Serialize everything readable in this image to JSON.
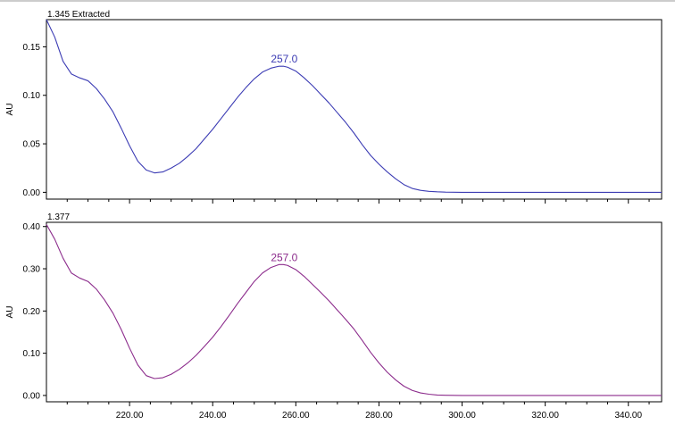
{
  "chart_data": [
    {
      "type": "line",
      "title": "1.345 Extracted",
      "xlabel": "",
      "ylabel": "AU",
      "xlim": [
        200,
        348
      ],
      "ylim": [
        -0.007,
        0.178
      ],
      "yticks": [
        "0.00",
        "0.05",
        "0.10",
        "0.15"
      ],
      "xticks": [],
      "line_color": "#3c3cb4",
      "grid": false,
      "peak_annotation": {
        "text": "257.0",
        "x": 257.0,
        "y": 0.13
      },
      "series": [
        {
          "x": [
            200,
            202,
            204,
            206,
            208,
            210,
            212,
            214,
            216,
            218,
            220,
            222,
            224,
            226,
            228,
            230,
            232,
            234,
            236,
            238,
            240,
            242,
            244,
            246,
            248,
            250,
            252,
            254,
            256,
            257,
            258,
            260,
            262,
            264,
            266,
            268,
            270,
            272,
            274,
            276,
            278,
            280,
            282,
            284,
            286,
            288,
            290,
            292,
            294,
            296,
            300,
            310,
            320,
            330,
            340,
            348
          ],
          "values": [
            0.178,
            0.16,
            0.135,
            0.122,
            0.118,
            0.115,
            0.107,
            0.096,
            0.083,
            0.066,
            0.048,
            0.032,
            0.023,
            0.02,
            0.021,
            0.025,
            0.03,
            0.037,
            0.045,
            0.055,
            0.065,
            0.076,
            0.087,
            0.098,
            0.108,
            0.117,
            0.124,
            0.128,
            0.13,
            0.13,
            0.129,
            0.125,
            0.118,
            0.11,
            0.101,
            0.092,
            0.082,
            0.072,
            0.061,
            0.049,
            0.038,
            0.029,
            0.021,
            0.014,
            0.008,
            0.004,
            0.002,
            0.001,
            0.0005,
            0.0002,
            0,
            0,
            0,
            0,
            0,
            0
          ]
        }
      ]
    },
    {
      "type": "line",
      "title": "1.377",
      "xlabel": "",
      "ylabel": "AU",
      "xlim": [
        200,
        348
      ],
      "ylim": [
        -0.015,
        0.41
      ],
      "yticks": [
        "0.00",
        "0.10",
        "0.20",
        "0.30",
        "0.40"
      ],
      "xticks": [
        "220.00",
        "240.00",
        "260.00",
        "280.00",
        "300.00",
        "320.00",
        "340.00"
      ],
      "line_color": "#8c2c8c",
      "grid": false,
      "peak_annotation": {
        "text": "257.0",
        "x": 257.0,
        "y": 0.31
      },
      "series": [
        {
          "x": [
            200,
            202,
            204,
            206,
            208,
            210,
            212,
            214,
            216,
            218,
            220,
            222,
            224,
            226,
            228,
            230,
            232,
            234,
            236,
            238,
            240,
            242,
            244,
            246,
            248,
            250,
            252,
            254,
            256,
            257,
            258,
            260,
            262,
            264,
            266,
            268,
            270,
            272,
            274,
            276,
            278,
            280,
            282,
            284,
            286,
            288,
            290,
            292,
            294,
            296,
            300,
            310,
            320,
            330,
            340,
            348
          ],
          "values": [
            0.405,
            0.37,
            0.325,
            0.29,
            0.278,
            0.27,
            0.252,
            0.226,
            0.195,
            0.156,
            0.112,
            0.072,
            0.047,
            0.04,
            0.042,
            0.05,
            0.062,
            0.077,
            0.095,
            0.116,
            0.138,
            0.163,
            0.19,
            0.218,
            0.244,
            0.27,
            0.29,
            0.303,
            0.31,
            0.31,
            0.308,
            0.298,
            0.282,
            0.263,
            0.244,
            0.224,
            0.202,
            0.18,
            0.157,
            0.13,
            0.102,
            0.077,
            0.055,
            0.037,
            0.022,
            0.012,
            0.006,
            0.003,
            0.001,
            0.0005,
            0,
            0,
            0,
            0,
            0,
            0
          ]
        }
      ]
    }
  ]
}
